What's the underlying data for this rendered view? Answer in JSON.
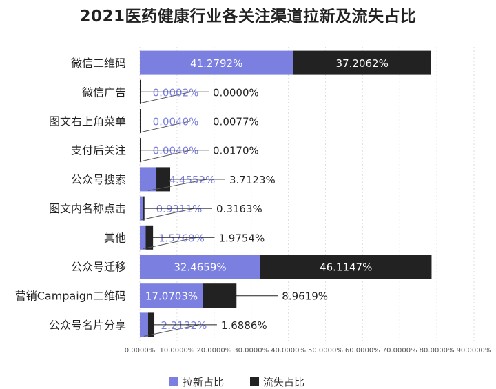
{
  "chart_data": {
    "type": "bar",
    "stacked": true,
    "orientation": "horizontal",
    "title": "2021医药健康行业各关注渠道拉新及流失占比",
    "categories": [
      "微信二维码",
      "微信广告",
      "图文右上角菜单",
      "支付后关注",
      "公众号搜索",
      "图文内名称点击",
      "其他",
      "公众号迁移",
      "营销Campaign二维码",
      "公众号名片分享"
    ],
    "series": [
      {
        "name": "拉新占比",
        "color": "#7b7fe0",
        "values": [
          41.2792,
          0.0002,
          0.004,
          0.004,
          4.4552,
          0.9311,
          1.5768,
          32.4659,
          17.0703,
          2.2132
        ],
        "labels": [
          "41.2792%",
          "0.0002%",
          "0.0040%",
          "0.0040%",
          "4.4552%",
          "0.9311%",
          "1.5768%",
          "32.4659%",
          "17.0703%",
          "2.2132%"
        ]
      },
      {
        "name": "流失占比",
        "color": "#222222",
        "values": [
          37.2062,
          0.0,
          0.0077,
          0.017,
          3.7123,
          0.3163,
          1.9754,
          46.1147,
          8.9619,
          1.6886
        ],
        "labels": [
          "37.2062%",
          "0.0000%",
          "0.0077%",
          "0.0170%",
          "3.7123%",
          "0.3163%",
          "1.9754%",
          "46.1147%",
          "8.9619%",
          "1.6886%"
        ]
      }
    ],
    "xlim": [
      0,
      90
    ],
    "xticks": [
      0,
      10,
      20,
      30,
      40,
      50,
      60,
      70,
      80,
      90
    ],
    "xtick_labels": [
      "0.0000%",
      "10.0000%",
      "20.0000%",
      "30.0000%",
      "40.0000%",
      "50.0000%",
      "60.0000%",
      "70.0000%",
      "80.0000%",
      "90.0000%"
    ],
    "grid": true,
    "legend_position": "bottom",
    "legend": [
      "拉新占比",
      "流失占比"
    ]
  }
}
